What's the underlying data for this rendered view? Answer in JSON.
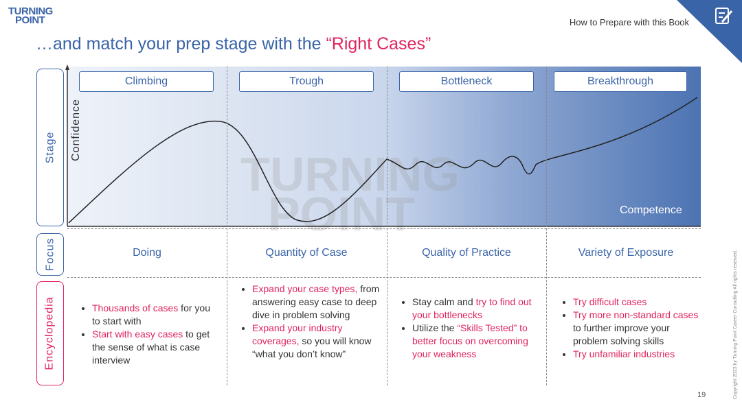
{
  "logo": {
    "line1": "TURNING",
    "line2": "POINT"
  },
  "header": {
    "section": "How to Prepare with this Book",
    "icon": "edit-note-icon",
    "accent": "#3a64a8"
  },
  "title": {
    "prefix": "…and match your prep stage with the ",
    "highlight": "“Right Cases”"
  },
  "row_labels": {
    "stage": "Stage",
    "focus": "Focus",
    "encyclopedia": "Encyclopedia"
  },
  "axes": {
    "y": "Confidence",
    "x": "Competence"
  },
  "watermark": {
    "line1": "TURNING",
    "line2": "POINT"
  },
  "stages": [
    "Climbing",
    "Trough",
    "Bottleneck",
    "Breakthrough"
  ],
  "focus": [
    "Doing",
    "Quantity of Case",
    "Quality of Practice",
    "Variety of Exposure"
  ],
  "encyclopedia": [
    [
      [
        {
          "t": "Thousands of cases",
          "red": true
        },
        {
          "t": " for you to start with"
        }
      ],
      [
        {
          "t": "Start with easy cases",
          "red": true
        },
        {
          "t": " to get the sense of what is case interview"
        }
      ]
    ],
    [
      [
        {
          "t": "Expand your case types,",
          "red": true
        },
        {
          "t": " from answering easy case to deep dive in problem solving"
        }
      ],
      [
        {
          "t": "Expand your industry coverages,",
          "red": true
        },
        {
          "t": " so you will know “what you don’t know”"
        }
      ]
    ],
    [
      [
        {
          "t": "Stay calm and "
        },
        {
          "t": "try to find out your bottlenecks",
          "red": true
        }
      ],
      [
        {
          "t": "Utilize the "
        },
        {
          "t": "“Skills Tested” to better focus on overcoming your weakness",
          "red": true
        }
      ]
    ],
    [
      [
        {
          "t": "Try difficult cases",
          "red": true
        }
      ],
      [
        {
          "t": "Try more non-standard cases",
          "red": true
        },
        {
          "t": " to further improve your problem solving skills"
        }
      ],
      [
        {
          "t": "Try unfamiliar industries",
          "red": true
        }
      ]
    ]
  ],
  "copyright": "Copyright 2023 by Turning Point Career Consulting All rights reserved.",
  "page_number": "19",
  "colors": {
    "blue": "#3a64a8",
    "red": "#e0245e"
  }
}
